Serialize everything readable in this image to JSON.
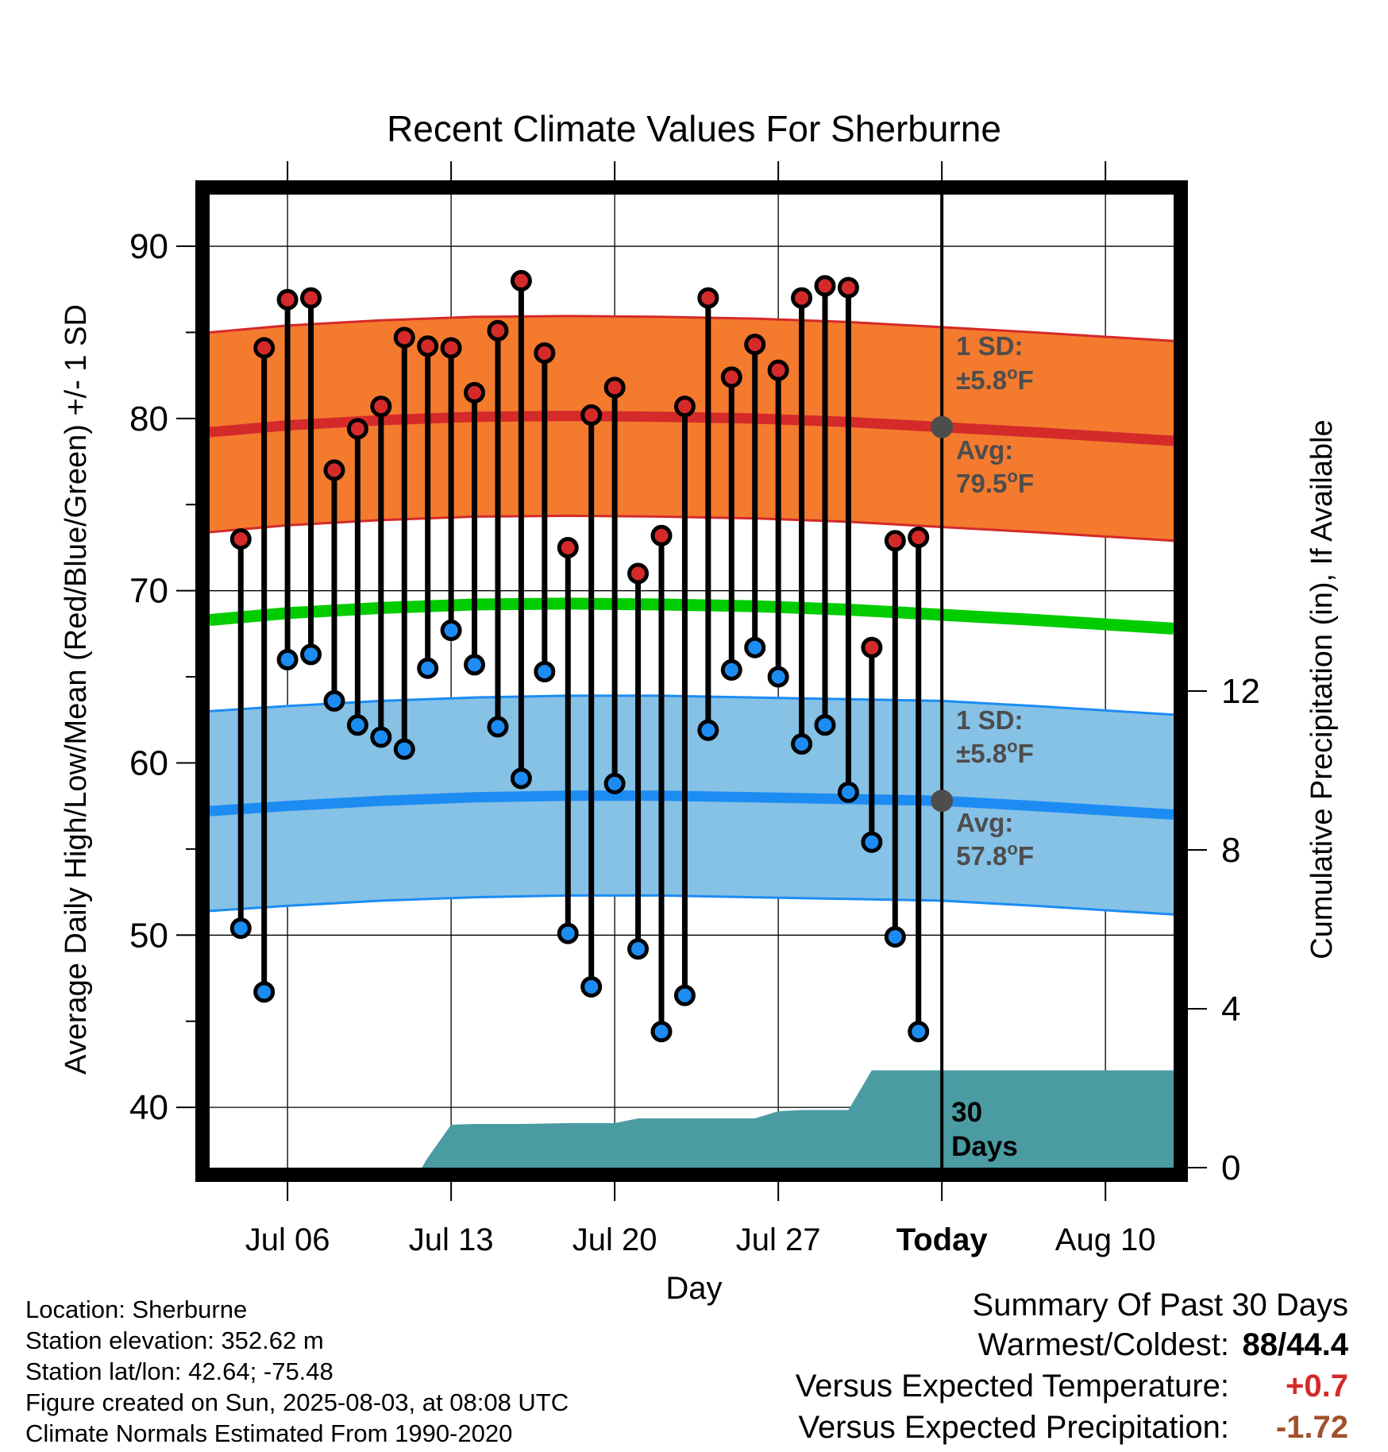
{
  "chart_data": {
    "type": "line",
    "title": "Recent Climate Values For Sherburne",
    "xlabel": "Day",
    "ylabel": "Average Daily High/Low/Mean (Red/Blue/Green) +/- 1 SD",
    "y2label": "Cumulative Precipitation (in), If Available",
    "ylim": [
      36.5,
      93
    ],
    "y_ticks": [
      40,
      50,
      60,
      70,
      80,
      90
    ],
    "y2lim": [
      0,
      24.5
    ],
    "y2_ticks": [
      0,
      4,
      8,
      12
    ],
    "x_tick_labels": [
      "Jul 06",
      "Jul 13",
      "Jul 20",
      "Jul 27",
      "Today",
      "Aug 10"
    ],
    "x_tick_dates": [
      "2025-07-06",
      "2025-07-13",
      "2025-07-20",
      "2025-07-27",
      "2025-08-03",
      "2025-08-10"
    ],
    "xlim": [
      "2025-07-02T16:00",
      "2025-08-12T22:00"
    ],
    "today": "2025-08-03",
    "grid": true,
    "colors": {
      "high_band": "#f47a2e",
      "high_line": "#d42a2a",
      "low_band": "#86c1e6",
      "low_line": "#1c8cf3",
      "mean_line": "#00cc00",
      "precip": "#4a9ba2",
      "high_marker": "#d42a2a",
      "low_marker": "#1c8cf3",
      "annotation": "#4d4d4d"
    },
    "normal_dates": [
      "2025-07-02T16:00",
      "2025-07-06",
      "2025-07-10",
      "2025-07-14",
      "2025-07-18",
      "2025-07-22",
      "2025-07-26",
      "2025-07-30",
      "2025-08-03",
      "2025-08-07",
      "2025-08-12T22:00"
    ],
    "normal_high": [
      79.2,
      79.6,
      79.9,
      80.1,
      80.15,
      80.1,
      80.0,
      79.8,
      79.5,
      79.2,
      78.7
    ],
    "normal_mean": [
      68.3,
      68.7,
      69.0,
      69.2,
      69.25,
      69.2,
      69.1,
      68.9,
      68.6,
      68.3,
      67.8
    ],
    "normal_low": [
      57.2,
      57.5,
      57.8,
      58.0,
      58.1,
      58.1,
      58.0,
      57.9,
      57.8,
      57.5,
      57.0
    ],
    "sd": 5.8,
    "daily_dates": [
      "2025-07-04",
      "2025-07-05",
      "2025-07-06",
      "2025-07-07",
      "2025-07-08",
      "2025-07-09",
      "2025-07-10",
      "2025-07-11",
      "2025-07-12",
      "2025-07-13",
      "2025-07-14",
      "2025-07-15",
      "2025-07-16",
      "2025-07-17",
      "2025-07-18",
      "2025-07-19",
      "2025-07-20",
      "2025-07-21",
      "2025-07-22",
      "2025-07-23",
      "2025-07-24",
      "2025-07-25",
      "2025-07-26",
      "2025-07-27",
      "2025-07-28",
      "2025-07-29",
      "2025-07-30",
      "2025-07-31",
      "2025-08-01",
      "2025-08-02"
    ],
    "daily_high": [
      73.0,
      84.1,
      86.9,
      87.0,
      77.0,
      79.4,
      80.7,
      84.7,
      84.2,
      84.1,
      81.5,
      85.1,
      88.0,
      83.8,
      72.5,
      80.2,
      81.8,
      71.0,
      73.2,
      80.7,
      87.0,
      82.4,
      84.3,
      82.8,
      87.0,
      87.7,
      87.6,
      66.7,
      72.9,
      73.1
    ],
    "daily_low": [
      50.4,
      46.7,
      66.0,
      66.3,
      63.6,
      62.2,
      61.5,
      60.8,
      65.5,
      67.7,
      65.7,
      62.1,
      59.1,
      65.3,
      50.1,
      47.0,
      58.8,
      49.2,
      44.4,
      46.5,
      61.9,
      65.4,
      66.7,
      65.0,
      61.1,
      62.2,
      58.3,
      55.4,
      49.9,
      44.4
    ],
    "precip_dates": [
      "2025-07-02T16:00",
      "2025-07-11T18:00",
      "2025-07-12",
      "2025-07-13",
      "2025-07-14",
      "2025-07-16",
      "2025-07-18",
      "2025-07-19",
      "2025-07-20",
      "2025-07-21",
      "2025-07-22",
      "2025-07-24",
      "2025-07-26",
      "2025-07-27",
      "2025-07-28",
      "2025-07-29",
      "2025-07-30",
      "2025-07-31",
      "2025-08-01",
      "2025-08-03",
      "2025-08-12T22:00"
    ],
    "precip_cum": [
      0.0,
      0.0,
      0.25,
      1.08,
      1.1,
      1.1,
      1.12,
      1.12,
      1.12,
      1.24,
      1.24,
      1.24,
      1.24,
      1.42,
      1.45,
      1.45,
      1.45,
      2.45,
      2.45,
      2.45,
      2.45
    ],
    "annotations": {
      "high_sd_label": "1 SD:",
      "high_sd_value": "±5.8",
      "low_sd_label": "1 SD:",
      "low_sd_value": "±5.8",
      "high_avg_label": "Avg:",
      "high_avg_value": "79.5",
      "high_avg": 79.5,
      "low_avg_label": "Avg:",
      "low_avg_value": "57.8",
      "low_avg": 57.8,
      "degree_unit": "o",
      "temp_unit": "F",
      "window_label_num": "30",
      "window_label_word": "Days"
    }
  },
  "info": {
    "location": "Location: Sherburne",
    "elevation": "Station elevation: 352.62 m",
    "latlon": "Station lat/lon: 42.64; -75.48",
    "created": "Figure created on Sun, 2025-08-03, at 08:08 UTC",
    "normals": "Climate Normals Estimated From 1990-2020"
  },
  "summary": {
    "title": "Summary Of Past 30 Days",
    "warm_cold_label": "Warmest/Coldest:",
    "warmest": "88",
    "separator": "/",
    "coldest": "44.4",
    "temp_label": "Versus Expected Temperature:",
    "temp_value": "+0.7",
    "temp_color": "#d42a2a",
    "precip_label": "Versus Expected Precipitation:",
    "precip_value": "-1.72",
    "precip_color": "#a0522d"
  }
}
